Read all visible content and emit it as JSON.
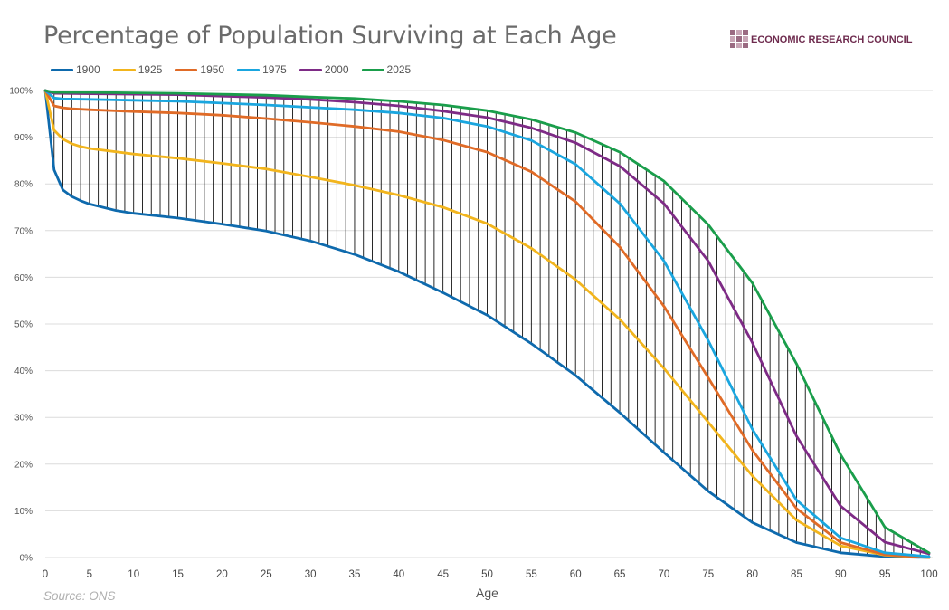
{
  "header": {
    "title": "Percentage of Population Surviving at Each Age",
    "brand": "ECONOMIC RESEARCH COUNCIL"
  },
  "footer": {
    "source": "Source: ONS"
  },
  "colors": {
    "1900": "#0e6aad",
    "1925": "#f2b51d",
    "1950": "#e06b27",
    "1975": "#1aa6df",
    "2000": "#7e2b86",
    "2025": "#1a9e4b",
    "grid": "#dcdcdc",
    "hatch": "#111111"
  },
  "chart_data": {
    "type": "line",
    "title": "Percentage of Population Surviving at Each Age",
    "xlabel": "Age",
    "ylabel": "",
    "xlim": [
      0,
      100
    ],
    "ylim": [
      0,
      100
    ],
    "grid": "horizontal",
    "legend": "top-left",
    "x_ticks": [
      0,
      5,
      10,
      15,
      20,
      25,
      30,
      35,
      40,
      45,
      50,
      55,
      60,
      65,
      70,
      75,
      80,
      85,
      90,
      95,
      100
    ],
    "y_ticks": [
      "0%",
      "10%",
      "20%",
      "30%",
      "40%",
      "50%",
      "60%",
      "70%",
      "80%",
      "90%",
      "100%"
    ],
    "hatch_between": [
      "1900",
      "2025"
    ],
    "series": [
      {
        "name": "1900",
        "color": "#0e6aad",
        "points": [
          [
            0,
            100
          ],
          [
            1,
            83
          ],
          [
            2,
            78.7
          ],
          [
            3,
            77.3
          ],
          [
            4,
            76.4
          ],
          [
            5,
            75.7
          ],
          [
            8,
            74.3
          ],
          [
            10,
            73.7
          ],
          [
            15,
            72.7
          ],
          [
            20,
            71.4
          ],
          [
            25,
            69.9
          ],
          [
            30,
            67.8
          ],
          [
            35,
            64.9
          ],
          [
            40,
            61.2
          ],
          [
            45,
            56.7
          ],
          [
            50,
            51.9
          ],
          [
            55,
            45.8
          ],
          [
            60,
            39
          ],
          [
            65,
            31
          ],
          [
            70,
            22.5
          ],
          [
            75,
            14.2
          ],
          [
            80,
            7.5
          ],
          [
            85,
            3.2
          ],
          [
            90,
            1
          ],
          [
            95,
            0.2
          ],
          [
            100,
            0
          ]
        ]
      },
      {
        "name": "1925",
        "color": "#f2b51d",
        "points": [
          [
            0,
            100
          ],
          [
            1,
            91.5
          ],
          [
            2,
            89.6
          ],
          [
            3,
            88.6
          ],
          [
            4,
            88
          ],
          [
            5,
            87.6
          ],
          [
            10,
            86.4
          ],
          [
            15,
            85.5
          ],
          [
            20,
            84.4
          ],
          [
            25,
            83.2
          ],
          [
            30,
            81.5
          ],
          [
            35,
            79.7
          ],
          [
            40,
            77.6
          ],
          [
            45,
            75
          ],
          [
            50,
            71.5
          ],
          [
            55,
            66.2
          ],
          [
            60,
            59.5
          ],
          [
            65,
            51
          ],
          [
            70,
            40.5
          ],
          [
            75,
            29
          ],
          [
            80,
            17.5
          ],
          [
            85,
            8
          ],
          [
            90,
            2.5
          ],
          [
            95,
            0.5
          ],
          [
            100,
            0
          ]
        ]
      },
      {
        "name": "1950",
        "color": "#e06b27",
        "points": [
          [
            0,
            100
          ],
          [
            1,
            96.7
          ],
          [
            2,
            96.3
          ],
          [
            3,
            96.1
          ],
          [
            5,
            95.9
          ],
          [
            10,
            95.5
          ],
          [
            15,
            95.2
          ],
          [
            20,
            94.7
          ],
          [
            25,
            94
          ],
          [
            30,
            93.2
          ],
          [
            35,
            92.3
          ],
          [
            40,
            91.2
          ],
          [
            45,
            89.4
          ],
          [
            50,
            86.8
          ],
          [
            55,
            82.6
          ],
          [
            60,
            76.2
          ],
          [
            65,
            66.5
          ],
          [
            70,
            53.8
          ],
          [
            75,
            38.5
          ],
          [
            80,
            23
          ],
          [
            85,
            10.5
          ],
          [
            90,
            3.2
          ],
          [
            95,
            0.6
          ],
          [
            100,
            0
          ]
        ]
      },
      {
        "name": "1975",
        "color": "#1aa6df",
        "points": [
          [
            0,
            100
          ],
          [
            1,
            98.4
          ],
          [
            2,
            98.2
          ],
          [
            5,
            98.1
          ],
          [
            10,
            97.9
          ],
          [
            15,
            97.7
          ],
          [
            20,
            97.3
          ],
          [
            25,
            96.9
          ],
          [
            30,
            96.4
          ],
          [
            35,
            95.9
          ],
          [
            40,
            95.2
          ],
          [
            45,
            94.1
          ],
          [
            50,
            92.3
          ],
          [
            55,
            89.3
          ],
          [
            60,
            84.2
          ],
          [
            65,
            75.8
          ],
          [
            70,
            63.5
          ],
          [
            75,
            46.5
          ],
          [
            80,
            27.5
          ],
          [
            85,
            12.3
          ],
          [
            90,
            4.2
          ],
          [
            95,
            1
          ],
          [
            100,
            0.2
          ]
        ]
      },
      {
        "name": "2000",
        "color": "#7e2b86",
        "points": [
          [
            0,
            100
          ],
          [
            1,
            99.4
          ],
          [
            5,
            99.3
          ],
          [
            10,
            99.2
          ],
          [
            15,
            99.1
          ],
          [
            20,
            98.8
          ],
          [
            25,
            98.5
          ],
          [
            30,
            98.1
          ],
          [
            35,
            97.5
          ],
          [
            40,
            96.7
          ],
          [
            45,
            95.6
          ],
          [
            50,
            94.2
          ],
          [
            55,
            92
          ],
          [
            60,
            88.8
          ],
          [
            65,
            83.8
          ],
          [
            70,
            75.8
          ],
          [
            75,
            63.5
          ],
          [
            80,
            46
          ],
          [
            85,
            26
          ],
          [
            90,
            11
          ],
          [
            95,
            3.3
          ],
          [
            100,
            0.8
          ]
        ]
      },
      {
        "name": "2025",
        "color": "#1a9e4b",
        "points": [
          [
            0,
            100
          ],
          [
            1,
            99.6
          ],
          [
            5,
            99.6
          ],
          [
            10,
            99.5
          ],
          [
            15,
            99.4
          ],
          [
            20,
            99.2
          ],
          [
            25,
            99
          ],
          [
            30,
            98.6
          ],
          [
            35,
            98.3
          ],
          [
            40,
            97.7
          ],
          [
            45,
            96.9
          ],
          [
            50,
            95.7
          ],
          [
            55,
            93.8
          ],
          [
            60,
            91
          ],
          [
            65,
            86.8
          ],
          [
            70,
            80.6
          ],
          [
            75,
            71.3
          ],
          [
            80,
            58.8
          ],
          [
            85,
            41.5
          ],
          [
            90,
            22
          ],
          [
            95,
            6.5
          ],
          [
            100,
            1
          ]
        ]
      }
    ]
  }
}
